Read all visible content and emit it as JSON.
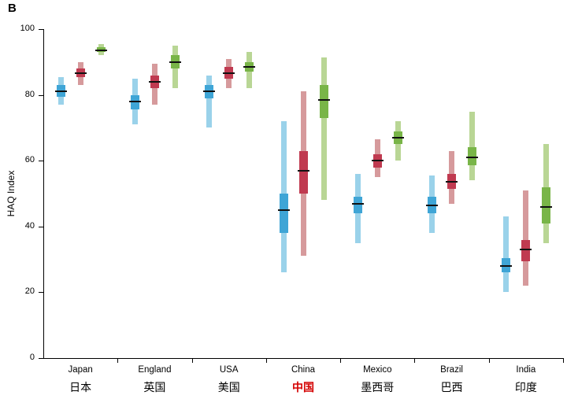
{
  "panel": {
    "label": "B"
  },
  "chart_data": {
    "type": "box",
    "title": "",
    "ylabel": "HAQ Index",
    "ylim": [
      0,
      100
    ],
    "yticks": [
      0,
      20,
      40,
      60,
      80,
      100
    ],
    "grid": false,
    "legend_position": "none",
    "highlight_color": "#d40000",
    "categories": [
      {
        "label_en": "Japan",
        "label_zh": "日本",
        "highlight": false
      },
      {
        "label_en": "England",
        "label_zh": "英国",
        "highlight": false
      },
      {
        "label_en": "USA",
        "label_zh": "美国",
        "highlight": false
      },
      {
        "label_en": "China",
        "label_zh": "中国",
        "highlight": true
      },
      {
        "label_en": "Mexico",
        "label_zh": "墨西哥",
        "highlight": false
      },
      {
        "label_en": "Brazil",
        "label_zh": "巴西",
        "highlight": false
      },
      {
        "label_en": "India",
        "label_zh": "印度",
        "highlight": false
      }
    ],
    "series": [
      {
        "name": "series-blue",
        "box_color": "#3fa5d6",
        "whisker_color": "#9ad2ea",
        "values": [
          {
            "low": 77,
            "q1": 79.5,
            "mid": 81,
            "q3": 83,
            "high": 85.5
          },
          {
            "low": 71,
            "q1": 75.5,
            "mid": 78,
            "q3": 80,
            "high": 85
          },
          {
            "low": 70,
            "q1": 79,
            "mid": 81,
            "q3": 83,
            "high": 86
          },
          {
            "low": 26,
            "q1": 38,
            "mid": 45,
            "q3": 50,
            "high": 72
          },
          {
            "low": 35,
            "q1": 44,
            "mid": 47,
            "q3": 49,
            "high": 56
          },
          {
            "low": 38,
            "q1": 44,
            "mid": 46.5,
            "q3": 49,
            "high": 55.5
          },
          {
            "low": 20,
            "q1": 26,
            "mid": 28,
            "q3": 30.5,
            "high": 43
          }
        ]
      },
      {
        "name": "series-red",
        "box_color": "#c03a50",
        "whisker_color": "#d69a9c",
        "values": [
          {
            "low": 83,
            "q1": 85.5,
            "mid": 86.5,
            "q3": 88,
            "high": 90
          },
          {
            "low": 77,
            "q1": 82,
            "mid": 84,
            "q3": 86,
            "high": 89.5
          },
          {
            "low": 82,
            "q1": 85,
            "mid": 86.5,
            "q3": 88.5,
            "high": 91
          },
          {
            "low": 31,
            "q1": 50,
            "mid": 57,
            "q3": 63,
            "high": 81
          },
          {
            "low": 55,
            "q1": 58,
            "mid": 60,
            "q3": 62,
            "high": 66.5
          },
          {
            "low": 47,
            "q1": 51.5,
            "mid": 53.5,
            "q3": 56,
            "high": 63
          },
          {
            "low": 22,
            "q1": 29.5,
            "mid": 33,
            "q3": 36,
            "high": 51
          }
        ]
      },
      {
        "name": "series-green",
        "box_color": "#79b548",
        "whisker_color": "#b9d695",
        "values": [
          {
            "low": 92,
            "q1": 93,
            "mid": 93.5,
            "q3": 94.5,
            "high": 95.5
          },
          {
            "low": 82,
            "q1": 88,
            "mid": 90,
            "q3": 92,
            "high": 95
          },
          {
            "low": 82,
            "q1": 87,
            "mid": 88.5,
            "q3": 90,
            "high": 93
          },
          {
            "low": 48,
            "q1": 73,
            "mid": 78.5,
            "q3": 83,
            "high": 91.5
          },
          {
            "low": 60,
            "q1": 65,
            "mid": 67,
            "q3": 69,
            "high": 72
          },
          {
            "low": 54,
            "q1": 58.5,
            "mid": 61,
            "q3": 64,
            "high": 75
          },
          {
            "low": 35,
            "q1": 41,
            "mid": 46,
            "q3": 52,
            "high": 65
          }
        ]
      }
    ]
  }
}
